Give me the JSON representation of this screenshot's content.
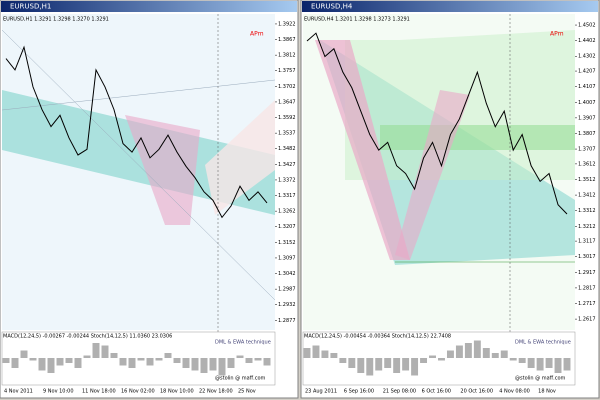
{
  "windows": [
    {
      "title": "EURUSD,H1",
      "info": "EURUSD,H1  1.3291 1.3298 1.3270 1.3291",
      "apm": "APm",
      "indicator": "MACD(12,24,5) -0.00267 -0.00244 Stoch(14,12,5) 11.0360 23.0306",
      "watermark": "DML & EWA technique",
      "signature": "@stolin @ maff.com",
      "price": {
        "ylim": [
          1.285,
          1.395
        ],
        "ticks": [
          1.3922,
          1.3867,
          1.3812,
          1.3757,
          1.3702,
          1.3647,
          1.3592,
          1.3537,
          1.3482,
          1.3427,
          1.3372,
          1.3317,
          1.3262,
          1.3207,
          1.3152,
          1.3097,
          1.3042,
          1.2987,
          1.2932,
          1.2877
        ],
        "close": [
          1.38,
          1.376,
          1.384,
          1.37,
          1.362,
          1.356,
          1.36,
          1.352,
          1.346,
          1.348,
          1.376,
          1.37,
          1.362,
          1.35,
          1.347,
          1.352,
          1.345,
          1.348,
          1.353,
          1.347,
          1.342,
          1.338,
          1.333,
          1.33,
          1.324,
          1.328,
          1.335,
          1.33,
          1.333,
          1.3291
        ]
      },
      "macd": [
        -2,
        -4,
        3,
        -1,
        -5,
        -6,
        -3,
        -2,
        -4,
        1,
        6,
        5,
        2,
        -3,
        -4,
        -1,
        -3,
        -1,
        2,
        -2,
        -4,
        -5,
        -6,
        -5,
        -7,
        -4,
        1,
        -2,
        -1,
        -3
      ],
      "dates": [
        "4 Nov 2011",
        "9 Nov 10:00",
        "11 Nov 18:00",
        "16 Nov 02:00",
        "18 Nov 10:00",
        "22 Nov 18:00",
        "25 Nov"
      ]
    },
    {
      "title": "EURUSD,H4",
      "info": "EURUSD,H4  1.3201 1.3298 1.3273 1.3291",
      "apm": "APm",
      "indicator": "MACD(12,24,5) -0.00454 -0.00364 Stoch(14,12,5) 22.7408",
      "watermark": "DML & EWA technique",
      "signature": "@stolin @ maff.com",
      "price": {
        "ylim": [
          1.256,
          1.456
        ],
        "ticks": [
          1.4502,
          1.4402,
          1.4302,
          1.4207,
          1.4107,
          1.4007,
          1.3907,
          1.3807,
          1.3707,
          1.3612,
          1.3512,
          1.3412,
          1.3312,
          1.3212,
          1.3117,
          1.3017,
          1.2917,
          1.2817,
          1.2717,
          1.2617
        ],
        "close": [
          1.44,
          1.445,
          1.43,
          1.435,
          1.42,
          1.41,
          1.395,
          1.38,
          1.37,
          1.375,
          1.36,
          1.355,
          1.345,
          1.365,
          1.375,
          1.36,
          1.38,
          1.39,
          1.405,
          1.42,
          1.4,
          1.385,
          1.395,
          1.37,
          1.38,
          1.36,
          1.35,
          1.355,
          1.335,
          1.3291
        ]
      },
      "macd": [
        4,
        5,
        3,
        2,
        -2,
        -4,
        -6,
        -7,
        -5,
        -4,
        -6,
        -5,
        -7,
        -2,
        1,
        -1,
        3,
        5,
        6,
        7,
        4,
        2,
        3,
        -1,
        -2,
        -4,
        -5,
        -4,
        -6,
        -5
      ],
      "dates": [
        "23 Aug 2011",
        "6 Sep 16:00",
        "21 Sep 08:00",
        "6 Oct 16:00",
        "20 Oct 16:00",
        "4 Nov 08:00",
        "18 Nov"
      ]
    }
  ]
}
